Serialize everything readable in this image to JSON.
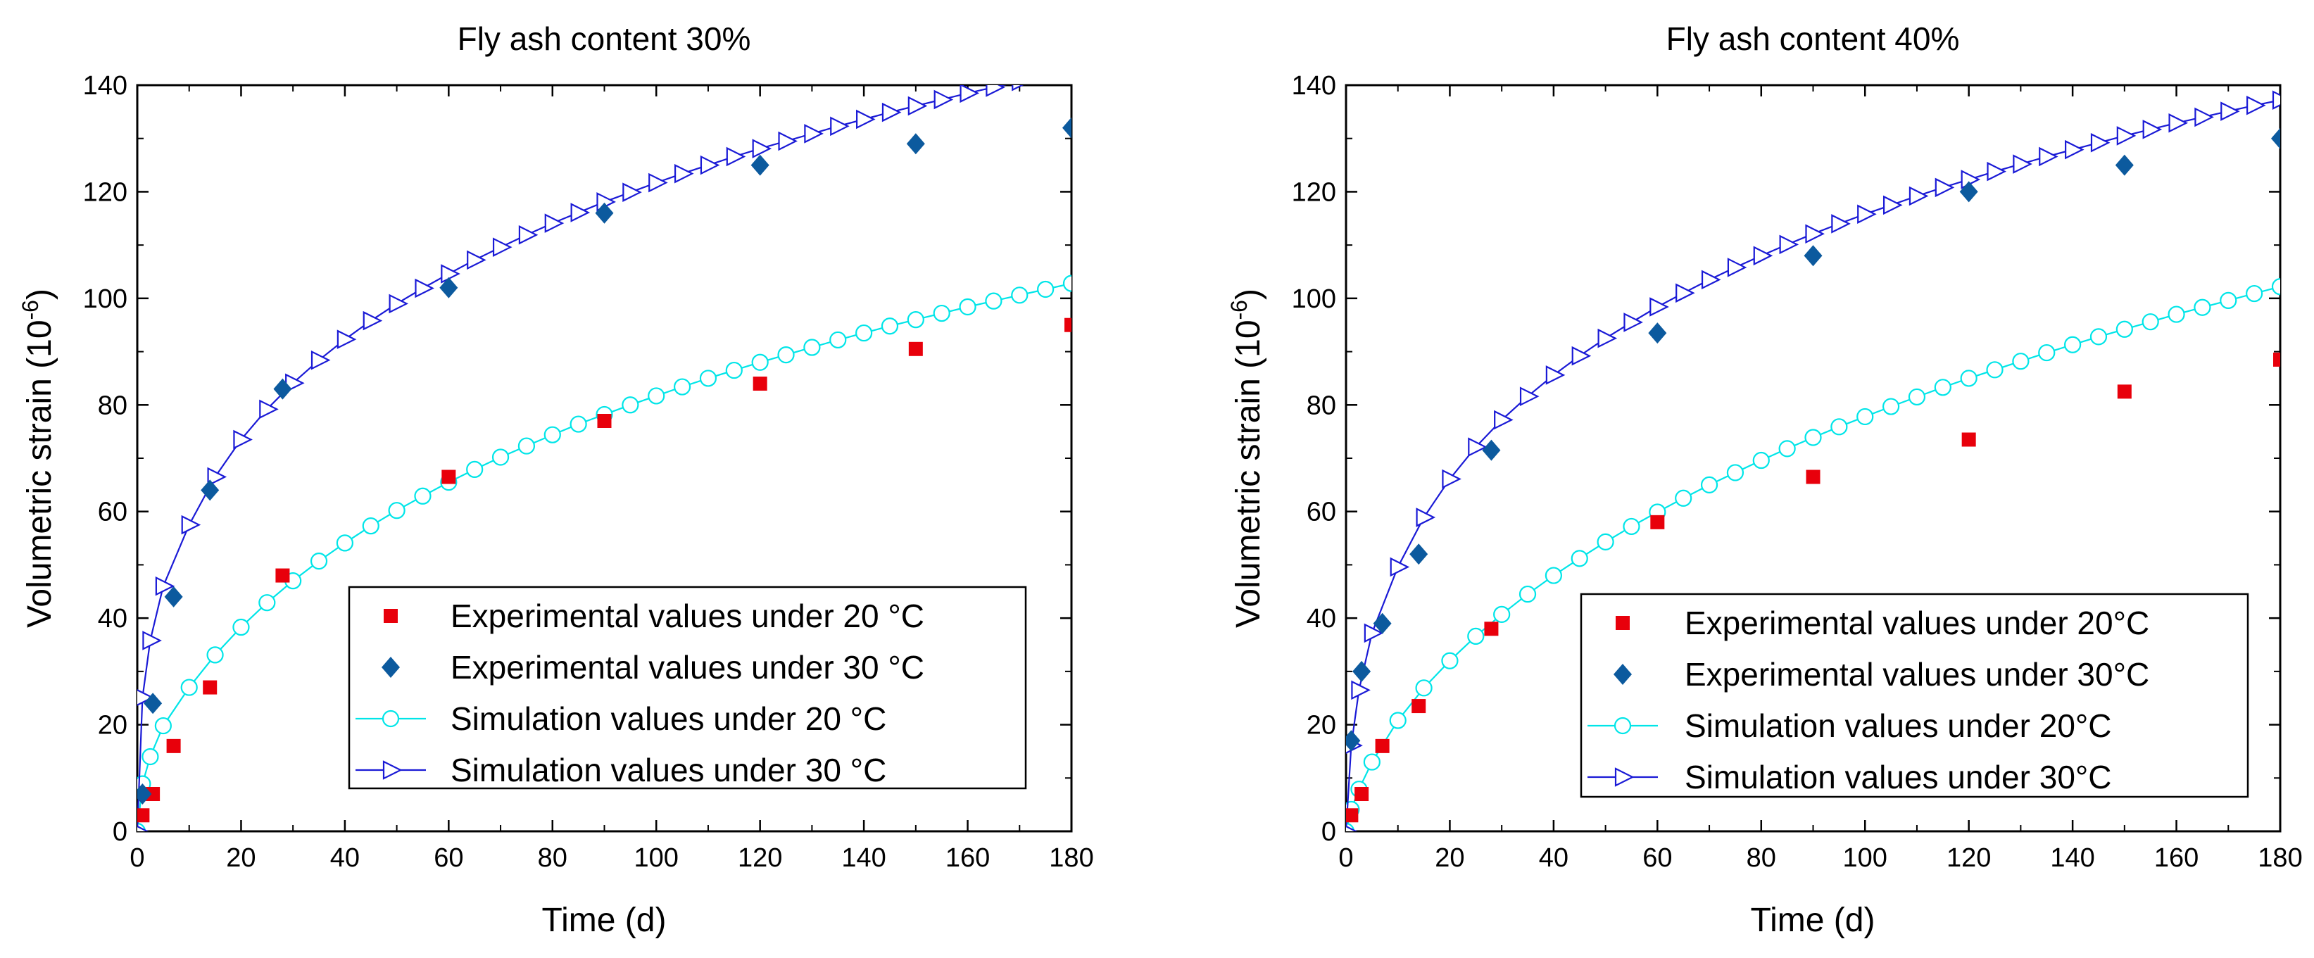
{
  "chart_data": [
    {
      "type": "scatter",
      "title": "Fly ash content 30%",
      "xlabel": "Time (d)",
      "ylabel_main": "Volumetric strain (10",
      "ylabel_sup": "-6",
      "ylabel_close": ")",
      "xlim": [
        0,
        180
      ],
      "ylim": [
        0,
        140
      ],
      "xticks": [
        0,
        20,
        40,
        60,
        80,
        100,
        120,
        140,
        160,
        180
      ],
      "yticks": [
        0,
        20,
        40,
        60,
        80,
        100,
        120,
        140
      ],
      "grid": false,
      "legend_position": "bottom-right",
      "series": [
        {
          "name": "Experimental values under 20 °C",
          "kind": "marker",
          "marker": "square",
          "color": "#e8000b",
          "x": [
            1,
            3,
            7,
            14,
            28,
            60,
            90,
            120,
            150,
            180
          ],
          "y": [
            3,
            7,
            16,
            27,
            48,
            66.5,
            77,
            84,
            90.5,
            95
          ]
        },
        {
          "name": "Experimental values under 30 °C",
          "kind": "marker",
          "marker": "diamond",
          "color": "#0c5a9e",
          "x": [
            1,
            3,
            7,
            14,
            28,
            60,
            90,
            120,
            150,
            180
          ],
          "y": [
            7,
            24,
            44,
            64,
            83,
            102,
            116,
            125,
            129,
            132
          ]
        },
        {
          "name": "Simulation values under 20 °C",
          "kind": "line-marker",
          "marker": "circle",
          "color": "#00e5e8",
          "x": [
            0,
            1,
            2.5,
            5,
            10,
            15,
            20,
            25,
            30,
            35,
            40,
            45,
            50,
            55,
            60,
            65,
            70,
            75,
            80,
            85,
            90,
            95,
            100,
            105,
            110,
            115,
            120,
            125,
            130,
            135,
            140,
            145,
            150,
            155,
            160,
            165,
            170,
            175,
            180
          ],
          "y": [
            0,
            8.9,
            14.0,
            19.8,
            27.0,
            33.1,
            38.3,
            42.9,
            47.0,
            50.7,
            54.1,
            57.3,
            60.2,
            62.9,
            65.5,
            67.9,
            70.2,
            72.3,
            74.4,
            76.4,
            78.2,
            80.0,
            81.7,
            83.4,
            85.0,
            86.5,
            88.0,
            89.4,
            90.8,
            92.2,
            93.5,
            94.8,
            96.0,
            97.2,
            98.4,
            99.5,
            100.6,
            101.7,
            102.8
          ]
        },
        {
          "name": "Simulation values under 30 °C",
          "kind": "line-marker",
          "marker": "triangle-right",
          "color": "#1a1ad6",
          "x": [
            0,
            1,
            2.5,
            5,
            10,
            15,
            20,
            25,
            30,
            35,
            40,
            45,
            50,
            55,
            60,
            65,
            70,
            75,
            80,
            85,
            90,
            95,
            100,
            105,
            110,
            115,
            120,
            125,
            130,
            135,
            140,
            145,
            150,
            155,
            160,
            165,
            170,
            175,
            180
          ],
          "y": [
            0,
            25.1,
            35.8,
            46.0,
            57.5,
            66.5,
            73.5,
            79.2,
            84.1,
            88.4,
            92.3,
            95.8,
            99.0,
            101.9,
            104.6,
            107.2,
            109.6,
            111.9,
            114.1,
            116.1,
            118.1,
            119.9,
            121.7,
            123.4,
            125.0,
            126.6,
            128.1,
            129.5,
            130.9,
            132.3,
            133.6,
            134.9,
            136.1,
            137.3,
            138.5,
            139.6,
            140.7,
            141.8,
            142.9
          ]
        }
      ]
    },
    {
      "type": "scatter",
      "title": "Fly ash content 40%",
      "xlabel": "Time (d)",
      "ylabel_main": "Volumetric strain (10",
      "ylabel_sup": "-6",
      "ylabel_close": ")",
      "xlim": [
        0,
        180
      ],
      "ylim": [
        0,
        140
      ],
      "xticks": [
        0,
        20,
        40,
        60,
        80,
        100,
        120,
        140,
        160,
        180
      ],
      "yticks": [
        0,
        20,
        40,
        60,
        80,
        100,
        120,
        140
      ],
      "grid": false,
      "legend_position": "bottom-right",
      "series": [
        {
          "name": "Experimental values under 20°C",
          "kind": "marker",
          "marker": "square",
          "color": "#e8000b",
          "x": [
            1,
            3,
            7,
            14,
            28,
            60,
            90,
            120,
            150,
            180
          ],
          "y": [
            3,
            7,
            16,
            23.5,
            38,
            58,
            66.5,
            73.5,
            82.5,
            88.5
          ]
        },
        {
          "name": "Experimental values under 30°C",
          "kind": "marker",
          "marker": "diamond",
          "color": "#0c5a9e",
          "x": [
            1,
            3,
            7,
            14,
            28,
            60,
            90,
            120,
            150,
            180
          ],
          "y": [
            17,
            30,
            39,
            52,
            71.5,
            93.5,
            108,
            120,
            125,
            130
          ]
        },
        {
          "name": "Simulation values under 20°C",
          "kind": "line-marker",
          "marker": "circle",
          "color": "#00e5e8",
          "x": [
            0,
            1,
            2.5,
            5,
            10,
            15,
            20,
            25,
            30,
            35,
            40,
            45,
            50,
            55,
            60,
            65,
            70,
            75,
            80,
            85,
            90,
            95,
            100,
            105,
            110,
            115,
            120,
            125,
            130,
            135,
            140,
            145,
            150,
            155,
            160,
            165,
            170,
            175,
            180
          ],
          "y": [
            0,
            4.1,
            7.9,
            13.0,
            20.8,
            26.9,
            32.0,
            36.6,
            40.7,
            44.5,
            48.0,
            51.2,
            54.3,
            57.2,
            59.9,
            62.5,
            65.0,
            67.3,
            69.6,
            71.8,
            73.9,
            75.9,
            77.8,
            79.7,
            81.5,
            83.3,
            85.0,
            86.6,
            88.2,
            89.8,
            91.3,
            92.8,
            94.2,
            95.6,
            97.0,
            98.3,
            99.6,
            100.9,
            102.2
          ]
        },
        {
          "name": "Simulation values under 30°C",
          "kind": "line-marker",
          "marker": "triangle-right",
          "color": "#1a1ad6",
          "x": [
            0,
            1,
            2.5,
            5,
            10,
            15,
            20,
            25,
            30,
            35,
            40,
            45,
            50,
            55,
            60,
            65,
            70,
            75,
            80,
            85,
            90,
            95,
            100,
            105,
            110,
            115,
            120,
            125,
            130,
            135,
            140,
            145,
            150,
            155,
            160,
            165,
            170,
            175,
            180
          ],
          "y": [
            0,
            16.1,
            26.5,
            37.2,
            49.6,
            58.9,
            66.1,
            72.1,
            77.2,
            81.6,
            85.6,
            89.2,
            92.5,
            95.5,
            98.4,
            101.0,
            103.5,
            105.8,
            108.0,
            110.1,
            112.1,
            114.0,
            115.8,
            117.5,
            119.2,
            120.8,
            122.3,
            123.8,
            125.2,
            126.6,
            127.9,
            129.2,
            130.5,
            131.7,
            132.9,
            134.0,
            135.1,
            136.2,
            137.2
          ]
        }
      ]
    }
  ]
}
